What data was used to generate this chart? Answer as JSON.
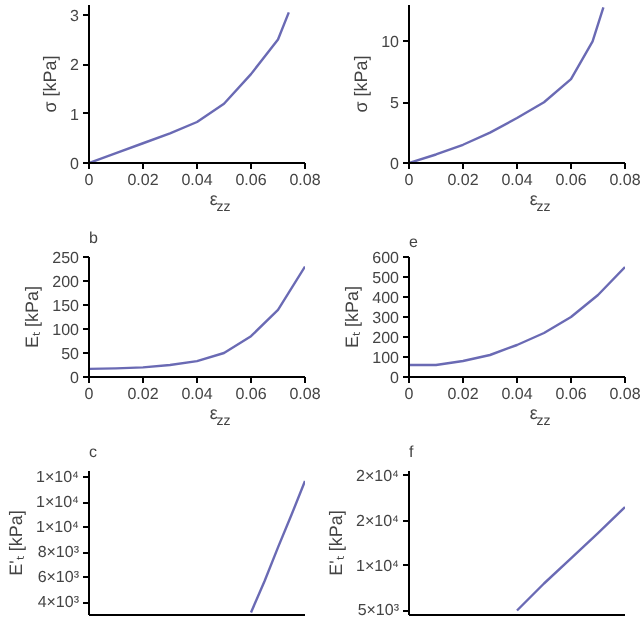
{
  "chart_data": [
    {
      "type": "line",
      "xlabel": "ε$_{zz}$",
      "ylabel": "σ [kPa]",
      "color": "#6a6ab4",
      "x": [
        0,
        0.01,
        0.02,
        0.03,
        0.04,
        0.05,
        0.06,
        0.07,
        0.074
      ],
      "values": [
        0,
        0.2,
        0.4,
        0.6,
        0.83,
        1.2,
        1.8,
        2.5,
        3.05
      ],
      "xlim": [
        0,
        0.08
      ],
      "xticks": [
        0,
        0.02,
        0.04,
        0.06,
        0.08
      ],
      "ylim": [
        0,
        3.2
      ],
      "yticks": [
        0,
        1,
        2,
        3
      ]
    },
    {
      "type": "line",
      "xlabel": "ε$_{zz}$",
      "ylabel": "σ [kPa]",
      "color": "#6a6ab4",
      "x": [
        0,
        0.01,
        0.02,
        0.03,
        0.04,
        0.05,
        0.06,
        0.068,
        0.072
      ],
      "values": [
        0,
        0.7,
        1.5,
        2.5,
        3.7,
        5.0,
        6.9,
        10.0,
        12.8
      ],
      "xlim": [
        0,
        0.08
      ],
      "xticks": [
        0,
        0.02,
        0.04,
        0.06,
        0.08
      ],
      "ylim": [
        0,
        13
      ],
      "yticks": [
        0,
        5,
        10
      ]
    },
    {
      "type": "line",
      "title": "b",
      "xlabel": "ε$_{zz}$",
      "ylabel": "Eₜ [kPa]",
      "color": "#6a6ab4",
      "x": [
        0,
        0.01,
        0.02,
        0.03,
        0.04,
        0.05,
        0.06,
        0.07,
        0.08
      ],
      "values": [
        17,
        18,
        20,
        25,
        33,
        50,
        85,
        140,
        230
      ],
      "xlim": [
        0,
        0.08
      ],
      "xticks": [
        0,
        0.02,
        0.04,
        0.06,
        0.08
      ],
      "ylim": [
        0,
        250
      ],
      "yticks": [
        0,
        50,
        100,
        150,
        200,
        250
      ]
    },
    {
      "type": "line",
      "title": "e",
      "xlabel": "ε$_{zz}$",
      "ylabel": "Eₜ [kPa]",
      "color": "#6a6ab4",
      "x": [
        0,
        0.01,
        0.02,
        0.03,
        0.04,
        0.05,
        0.06,
        0.07,
        0.08
      ],
      "values": [
        60,
        60,
        80,
        110,
        160,
        220,
        300,
        410,
        550
      ],
      "xlim": [
        0,
        0.08
      ],
      "xticks": [
        0,
        0.02,
        0.04,
        0.06,
        0.08
      ],
      "ylim": [
        0,
        600
      ],
      "yticks": [
        0,
        100,
        200,
        300,
        400,
        500,
        600
      ]
    },
    {
      "type": "line",
      "title": "c",
      "ylabel": "E'ₜ [kPa]",
      "color": "#6a6ab4",
      "x": [
        0.06,
        0.065,
        0.07,
        0.075,
        0.08
      ],
      "values": [
        3200,
        5700,
        8400,
        11000,
        13700
      ],
      "xlim": [
        0,
        0.08
      ],
      "ylim": [
        3000,
        14500
      ],
      "yticks": [
        {
          "value": 4000,
          "label": "4×10³"
        },
        {
          "value": 6000,
          "label": "6×10³"
        },
        {
          "value": 8000,
          "label": "8×10³"
        },
        {
          "value": 10000,
          "label": "1×10⁴"
        },
        {
          "value": 12000,
          "label": "1×10⁴"
        },
        {
          "value": 14000,
          "label": "1×10⁴"
        }
      ],
      "tick_labels": "y"
    },
    {
      "type": "line",
      "title": "f",
      "ylabel": "E'ₜ [kPa]",
      "color": "#6a6ab4",
      "x": [
        0.04,
        0.05,
        0.06,
        0.07,
        0.08
      ],
      "values": [
        5000,
        8000,
        10800,
        13600,
        16500
      ],
      "xlim": [
        0,
        0.08
      ],
      "ylim": [
        4500,
        20500
      ],
      "yticks": [
        {
          "value": 5000,
          "label": "5×10³"
        },
        {
          "value": 10000,
          "label": "1×10⁴"
        },
        {
          "value": 15000,
          "label": "2×10⁴"
        },
        {
          "value": 20000,
          "label": "2×10⁴"
        }
      ],
      "tick_labels": "y"
    }
  ]
}
